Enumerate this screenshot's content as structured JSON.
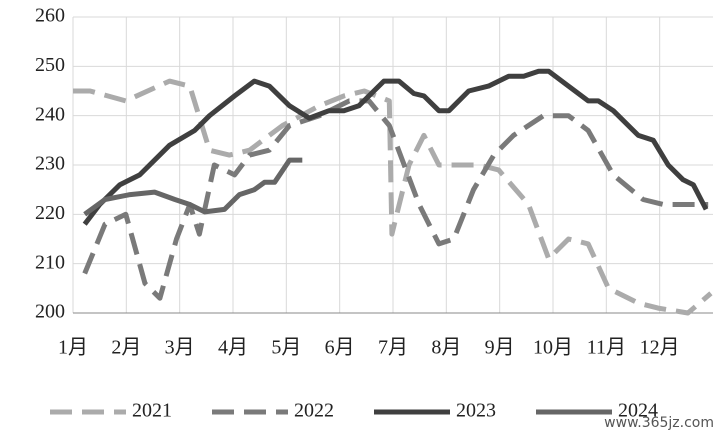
{
  "chart_data": {
    "type": "line",
    "xlim": [
      1,
      13
    ],
    "ylim": [
      200,
      260
    ],
    "xticks": [
      {
        "value": 1,
        "label": "1月"
      },
      {
        "value": 2,
        "label": "2月"
      },
      {
        "value": 3,
        "label": "3月"
      },
      {
        "value": 4,
        "label": "4月"
      },
      {
        "value": 5,
        "label": "5月"
      },
      {
        "value": 6,
        "label": "6月"
      },
      {
        "value": 7,
        "label": "7月"
      },
      {
        "value": 8,
        "label": "8月"
      },
      {
        "value": 9,
        "label": "9月"
      },
      {
        "value": 10,
        "label": "10月"
      },
      {
        "value": 11,
        "label": "11月"
      },
      {
        "value": 12,
        "label": "12月"
      }
    ],
    "yticks": [
      200,
      210,
      220,
      230,
      240,
      250,
      260
    ],
    "grid": true,
    "watermark": "www.365jz.com",
    "series": [
      {
        "name": "2021",
        "color": "#ababab",
        "dashed": true,
        "x": [
          1,
          1.32,
          1.99,
          2.81,
          3.19,
          3.56,
          3.93,
          4.31,
          4.93,
          5.62,
          6.08,
          6.46,
          6.93,
          6.98,
          7.3,
          7.58,
          7.86,
          8.61,
          8.98,
          9.54,
          9.92,
          10.29,
          10.66,
          11.04,
          11.6,
          11.97,
          12.53,
          12.96
        ],
        "values": [
          245,
          245,
          243,
          247,
          246,
          233,
          232,
          233,
          238,
          242,
          244,
          245,
          243,
          216,
          230,
          236,
          230,
          230,
          229,
          222,
          211,
          215,
          214,
          205,
          202,
          201,
          200,
          204
        ]
      },
      {
        "name": "2022",
        "color": "#7a7a7a",
        "dashed": true,
        "x": [
          1.22,
          1.6,
          1.99,
          2.35,
          2.63,
          2.94,
          3.19,
          3.37,
          3.65,
          4.03,
          4.31,
          4.68,
          5.06,
          5.62,
          6.18,
          6.55,
          6.93,
          7.21,
          7.49,
          7.86,
          8.14,
          8.51,
          8.89,
          9.26,
          9.82,
          10.29,
          10.66,
          11.13,
          11.69,
          12.07,
          12.53,
          12.91
        ],
        "values": [
          208,
          218,
          220,
          206,
          203,
          215,
          222,
          216,
          230,
          228,
          232,
          233,
          238,
          240,
          243,
          243,
          238,
          230,
          222,
          214,
          215,
          225,
          232,
          236,
          240,
          240,
          237,
          228,
          223,
          222,
          222,
          222
        ]
      },
      {
        "name": "2023",
        "color": "#3f3f3f",
        "dashed": false,
        "x": [
          1.22,
          1.5,
          1.88,
          2.25,
          2.81,
          3.28,
          3.56,
          4.03,
          4.4,
          4.68,
          5.06,
          5.43,
          5.8,
          6.08,
          6.36,
          6.83,
          7.11,
          7.39,
          7.58,
          7.86,
          8.05,
          8.42,
          8.79,
          9.17,
          9.45,
          9.73,
          9.92,
          10.29,
          10.66,
          10.85,
          11.13,
          11.6,
          11.88,
          12.16,
          12.44,
          12.63,
          12.87
        ],
        "values": [
          218,
          222,
          226,
          228,
          234,
          237,
          240,
          244,
          247,
          246,
          242,
          239.5,
          241,
          241,
          242,
          247,
          247,
          244.5,
          244,
          241,
          241,
          245,
          246,
          248,
          248,
          249,
          249,
          246,
          243,
          243,
          241,
          236,
          235,
          230,
          227,
          226,
          221
        ]
      },
      {
        "name": "2024",
        "color": "#666666",
        "dashed": false,
        "x": [
          1.22,
          1.6,
          2.07,
          2.53,
          2.91,
          3.19,
          3.47,
          3.84,
          4.12,
          4.4,
          4.59,
          4.78,
          5.06,
          5.3
        ],
        "values": [
          220,
          223,
          224,
          224.5,
          223,
          222,
          220.5,
          221,
          224,
          225,
          226.5,
          226.5,
          231,
          231
        ]
      }
    ]
  }
}
